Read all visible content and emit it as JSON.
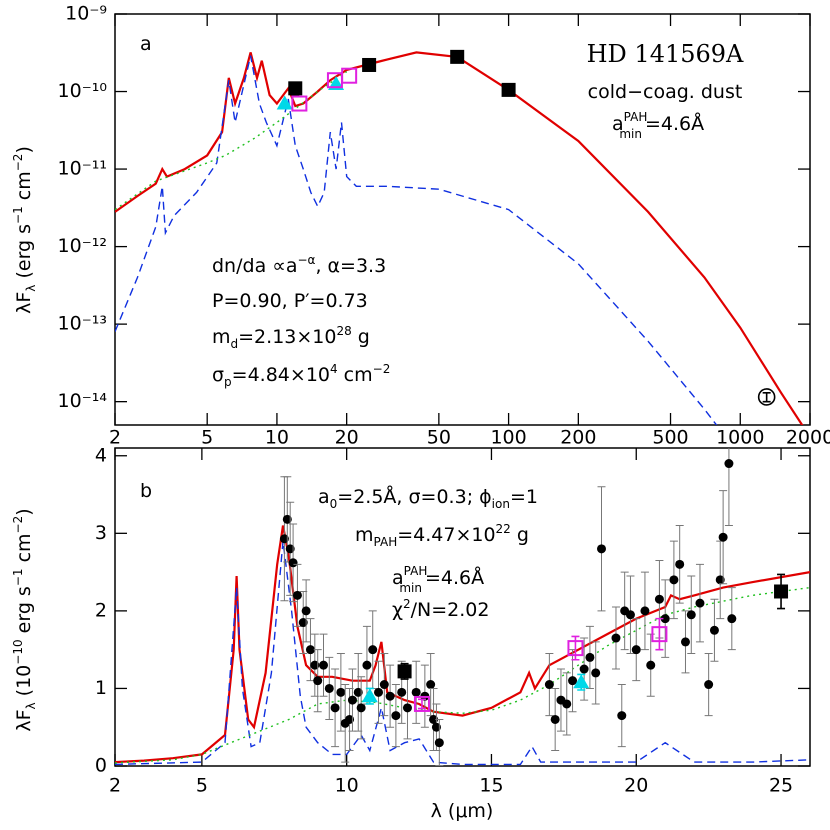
{
  "chart_data": [
    {
      "type": "line",
      "xscale": "log",
      "yscale": "log",
      "xlim": [
        2,
        2000
      ],
      "ylim": [
        5e-15,
        1e-09
      ],
      "xticks": [
        2,
        5,
        10,
        20,
        50,
        100,
        200,
        500,
        1000,
        2000
      ],
      "yticks": [
        {
          "value": 1e-09,
          "label": "10⁻⁹"
        },
        {
          "value": 1e-10,
          "label": "10⁻¹⁰"
        },
        {
          "value": 1e-11,
          "label": "10⁻¹¹"
        },
        {
          "value": 1e-12,
          "label": "10⁻¹²"
        },
        {
          "value": 1e-13,
          "label": "10⁻¹³"
        },
        {
          "value": 1e-14,
          "label": "10⁻¹⁴"
        }
      ],
      "ylabel": [
        "λF",
        "λ",
        " (erg s",
        "−1",
        " cm",
        "−2",
        ")"
      ],
      "annotations": {
        "panel": "a",
        "target": "HD 141569A",
        "dust": "cold−coag. dust",
        "amin": [
          "a",
          "PAH",
          "min",
          "=4.6Å"
        ],
        "size": [
          "dn/da ∝a",
          "−α",
          ", α=3.3"
        ],
        "porosity": "P=0.90, P′=0.73",
        "mass": [
          "m",
          "d",
          "=2.13×10",
          "28",
          " g"
        ],
        "sigma": [
          "σ",
          "p",
          "=4.84×10",
          "4",
          " cm",
          "−2"
        ]
      },
      "series": [
        {
          "color": "#e00000",
          "line": "solid",
          "x": [
            2,
            2.5,
            3,
            3.2,
            3.35,
            4,
            5,
            5.8,
            6.2,
            6.6,
            7.2,
            7.7,
            8.2,
            8.6,
            9.3,
            10,
            11.2,
            12,
            13,
            15,
            17,
            20,
            30,
            40,
            60,
            100,
            200,
            400,
            700,
            1000,
            1500,
            2000
          ],
          "values": [
            2.8e-12,
            4.5e-12,
            6.5e-12,
            1e-11,
            8e-12,
            1e-11,
            1.5e-11,
            3e-11,
            1.5e-10,
            7e-11,
            1.5e-10,
            3.2e-10,
            1.5e-10,
            2.5e-10,
            9e-11,
            7e-11,
            1.1e-10,
            6.5e-11,
            7e-11,
            1e-10,
            1.4e-10,
            1.9e-10,
            2.6e-10,
            3.2e-10,
            2.8e-10,
            1.05e-10,
            2.3e-11,
            2.8e-12,
            4e-13,
            9e-14,
            1.3e-14,
            3.5e-15
          ]
        },
        {
          "color": "#1030e0",
          "line": "dashed",
          "x": [
            2,
            2.5,
            3,
            3.2,
            3.3,
            3.6,
            4.5,
            5.5,
            6.2,
            6.6,
            7.7,
            8.4,
            9,
            10,
            11.2,
            12,
            13,
            14,
            15,
            16,
            17,
            18,
            19,
            20,
            22,
            30,
            50,
            100,
            200,
            400,
            700,
            900
          ],
          "values": [
            8e-14,
            4e-13,
            1.8e-12,
            6e-12,
            1.5e-12,
            2.5e-12,
            5e-12,
            1.2e-11,
            1.4e-10,
            4e-11,
            2.9e-10,
            7e-11,
            4e-11,
            2e-11,
            8e-11,
            2e-11,
            1e-11,
            5e-12,
            3.3e-12,
            5e-12,
            3e-11,
            1e-11,
            4e-11,
            8e-12,
            6e-12,
            6e-12,
            5.5e-12,
            3e-12,
            6e-13,
            6e-14,
            8e-15,
            3e-15
          ]
        },
        {
          "color": "#20c020",
          "line": "dotted",
          "x": [
            2,
            3,
            5,
            6,
            8,
            10,
            12,
            15,
            20
          ],
          "values": [
            3e-12,
            7e-12,
            1.2e-11,
            1.5e-11,
            2.5e-11,
            4e-11,
            6e-11,
            1e-10,
            1.8e-10
          ]
        },
        {
          "color": "#000000",
          "marker": "square",
          "x": [
            12,
            25,
            60,
            100
          ],
          "values": [
            1.1e-10,
            2.2e-10,
            2.8e-10,
            1.05e-10
          ],
          "errors": [
            2e-11,
            3e-11,
            4e-11,
            1.5e-11
          ]
        },
        {
          "color": "#000000",
          "marker": "open-circle",
          "x": [
            1300
          ],
          "values": [
            1.15e-14
          ],
          "errors": [
            1.5e-15
          ]
        },
        {
          "color": "#00d8e8",
          "marker": "triangle",
          "x": [
            10.8,
            18
          ],
          "values": [
            7e-11,
            1.25e-10
          ]
        },
        {
          "color": "#e020e0",
          "marker": "open-square",
          "x": [
            12.5,
            17.8,
            20.5
          ],
          "values": [
            7e-11,
            1.4e-10,
            1.6e-10
          ]
        }
      ]
    },
    {
      "type": "line",
      "xscale": "linear",
      "yscale": "linear",
      "xlim": [
        2,
        26
      ],
      "ylim": [
        0,
        4.1
      ],
      "xticks": [
        2,
        5,
        10,
        15,
        20,
        25
      ],
      "yticks": [
        0,
        1,
        2,
        3,
        4
      ],
      "xlabel": "λ (μm)",
      "ylabel": [
        "λF",
        "λ",
        " (10",
        "−10",
        " erg s",
        "−1",
        " cm",
        "−2",
        ")"
      ],
      "annotations": {
        "panel": "b",
        "grain": [
          "a",
          "0",
          "=2.5Å, σ=0.3; ϕ",
          "ion",
          "=1"
        ],
        "mpah": [
          "m",
          "PAH",
          "=4.47×10",
          "22",
          " g"
        ],
        "amin": [
          "a",
          "PAH",
          "min",
          "=4.6Å"
        ],
        "chi": [
          "χ",
          "2",
          "/N=2.02"
        ]
      },
      "series": [
        {
          "color": "#e00000",
          "line": "solid",
          "x": [
            2,
            3,
            4,
            5,
            5.8,
            6.1,
            6.2,
            6.3,
            6.6,
            6.8,
            7.2,
            7.6,
            7.8,
            8,
            8.3,
            8.6,
            9,
            9.5,
            10.2,
            10.8,
            11,
            11.2,
            11.4,
            12,
            12.5,
            13,
            14,
            15,
            16,
            16.3,
            16.5,
            17,
            18,
            19,
            20,
            21,
            21.2,
            21.5,
            22,
            23,
            24,
            26
          ],
          "values": [
            0.05,
            0.07,
            0.1,
            0.15,
            0.4,
            1.5,
            2.45,
            1.5,
            0.6,
            0.5,
            1.2,
            2.6,
            3.1,
            2.7,
            1.8,
            1.3,
            1.15,
            1.15,
            1.1,
            1.1,
            1.3,
            1.6,
            0.95,
            0.85,
            0.8,
            0.7,
            0.65,
            0.75,
            0.95,
            1.2,
            1.0,
            1.3,
            1.5,
            1.7,
            1.9,
            2.05,
            2.2,
            2.15,
            2.2,
            2.3,
            2.37,
            2.5
          ]
        },
        {
          "color": "#1030e0",
          "line": "dashed",
          "x": [
            2,
            5,
            5.8,
            6.2,
            6.4,
            6.7,
            7,
            7.4,
            7.8,
            8.1,
            8.4,
            8.6,
            9,
            9.5,
            10,
            10.5,
            10.8,
            11.2,
            11.5,
            12,
            12.5,
            13,
            14,
            16,
            16.4,
            16.7,
            18,
            20,
            21,
            22,
            24,
            26
          ],
          "values": [
            0.02,
            0.05,
            0.3,
            2.3,
            1.0,
            0.25,
            0.3,
            1.2,
            2.9,
            2.0,
            0.9,
            0.5,
            0.3,
            0.15,
            0.15,
            0.4,
            0.2,
            0.75,
            0.2,
            0.3,
            0.35,
            0.05,
            0.02,
            0.02,
            0.25,
            0.05,
            0.05,
            0.05,
            0.3,
            0.05,
            0.05,
            0.08
          ]
        },
        {
          "color": "#20c020",
          "line": "dotted",
          "x": [
            2,
            4,
            5,
            6,
            7,
            8,
            9,
            10,
            11,
            12,
            13,
            14,
            15,
            16,
            17,
            18,
            19,
            20,
            21,
            22,
            24,
            26
          ],
          "values": [
            0.04,
            0.08,
            0.15,
            0.3,
            0.45,
            0.6,
            0.8,
            0.85,
            0.82,
            0.75,
            0.7,
            0.68,
            0.72,
            0.85,
            1.05,
            1.3,
            1.55,
            1.75,
            1.95,
            2.05,
            2.2,
            2.3
          ]
        },
        {
          "color": "#000000",
          "marker": "circle",
          "x": [
            7.85,
            7.95,
            8.05,
            8.15,
            8.3,
            8.5,
            8.6,
            8.75,
            8.9,
            9,
            9.2,
            9.4,
            9.6,
            9.8,
            9.95,
            10.1,
            10.2,
            10.4,
            10.5,
            10.7,
            10.9,
            11.1,
            11.3,
            11.5,
            11.7,
            11.9,
            12.1,
            12.4,
            12.7,
            12.9,
            13,
            13.1,
            13.2,
            17,
            17.2,
            17.4,
            17.6,
            17.8,
            18.2,
            18.4,
            18.6,
            18.8,
            19.3,
            19.5,
            19.6,
            19.8,
            20,
            20.3,
            20.5,
            20.8,
            21,
            21.3,
            21.5,
            21.7,
            21.9,
            22.2,
            22.5,
            22.7,
            22.9,
            23,
            23.2,
            23.3
          ],
          "values": [
            2.93,
            3.18,
            2.8,
            2.62,
            2.2,
            1.85,
            2.0,
            1.5,
            1.3,
            1.1,
            1.3,
            1.0,
            0.75,
            0.95,
            0.55,
            0.6,
            0.85,
            0.95,
            0.75,
            1.3,
            1.5,
            0.95,
            1.05,
            0.9,
            0.65,
            0.95,
            0.75,
            0.95,
            0.9,
            1.05,
            0.6,
            0.5,
            0.3,
            1.05,
            0.6,
            0.85,
            0.8,
            1.1,
            1.25,
            1.4,
            1.2,
            2.8,
            1.65,
            0.65,
            2.0,
            1.95,
            1.5,
            2.0,
            1.3,
            2.15,
            1.9,
            2.4,
            2.6,
            1.6,
            1.95,
            2.1,
            1.05,
            1.75,
            2.4,
            2.95,
            3.9,
            1.9
          ],
          "errors": [
            0.8,
            0.55,
            0.6,
            0.5,
            0.4,
            0.4,
            0.4,
            0.4,
            0.4,
            0.4,
            0.4,
            0.4,
            0.5,
            0.5,
            0.5,
            0.4,
            0.4,
            0.5,
            0.4,
            0.5,
            0.5,
            0.4,
            0.4,
            0.4,
            0.4,
            0.4,
            0.4,
            0.4,
            0.4,
            0.4,
            0.4,
            0.3,
            0.3,
            0.4,
            0.4,
            0.4,
            0.4,
            0.4,
            0.4,
            0.4,
            0.4,
            0.8,
            0.4,
            0.4,
            0.5,
            0.5,
            0.4,
            0.5,
            0.4,
            0.5,
            0.5,
            0.5,
            0.5,
            0.4,
            0.5,
            0.5,
            0.4,
            0.4,
            0.5,
            0.6,
            0.8,
            0.4
          ]
        },
        {
          "color": "#000000",
          "marker": "square",
          "x": [
            12,
            25
          ],
          "values": [
            1.22,
            2.25
          ],
          "errors": [
            0.1,
            0.22
          ]
        },
        {
          "color": "#00d8e8",
          "marker": "triangle",
          "x": [
            10.8,
            18.1
          ],
          "values": [
            0.9,
            1.08
          ],
          "errors": [
            0.1,
            0.1
          ]
        },
        {
          "color": "#e020e0",
          "marker": "open-square",
          "x": [
            12.6,
            17.9,
            20.8
          ],
          "values": [
            0.8,
            1.52,
            1.7
          ],
          "errors": [
            0.06,
            0.15,
            0.2
          ]
        }
      ]
    }
  ]
}
